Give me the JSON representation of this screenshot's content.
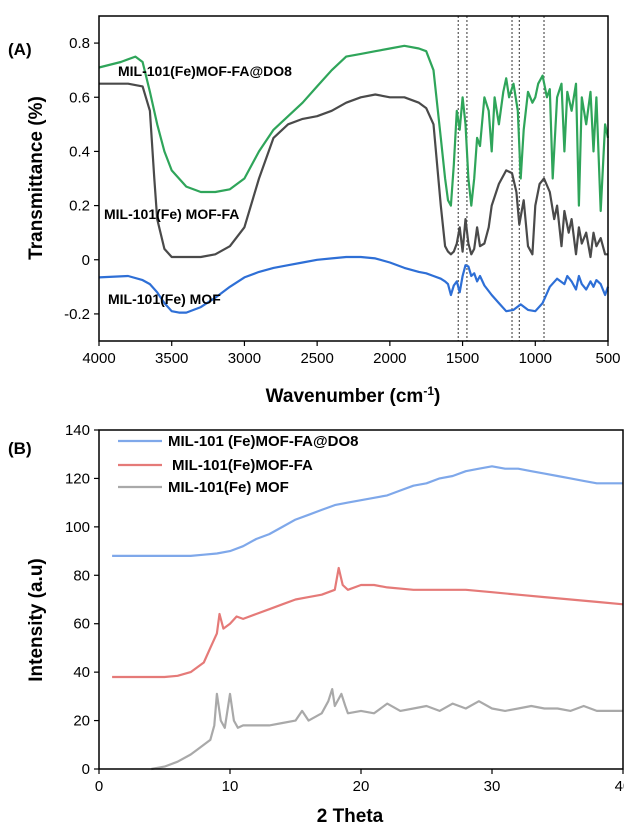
{
  "chart_data": [
    {
      "panel": "(A)",
      "type": "line",
      "xlabel": "Wavenumber (cm",
      "xlabel_sup": "-1",
      "xlabel_tail": ")",
      "ylabel": "Transmittance (%)",
      "xlim": [
        4000,
        500
      ],
      "ylim": [
        -0.3,
        0.9
      ],
      "x_reversed": true,
      "xticks": [
        "4000",
        "3500",
        "3000",
        "2500",
        "2000",
        "1500",
        "1000",
        "500"
      ],
      "yticks": [
        "-0.2",
        "0",
        "0.2",
        "0.4",
        "0.6",
        "0.8"
      ],
      "guides_x": [
        1530,
        1470,
        1160,
        1110,
        940
      ],
      "series": [
        {
          "name": "MIL-101(Fe)MOF-FA@DO8",
          "color": "#2fa55a",
          "x": [
            4000,
            3850,
            3750,
            3700,
            3650,
            3600,
            3550,
            3500,
            3400,
            3300,
            3200,
            3100,
            3000,
            2900,
            2800,
            2700,
            2600,
            2500,
            2400,
            2300,
            2200,
            2100,
            2000,
            1900,
            1800,
            1750,
            1700,
            1650,
            1620,
            1600,
            1580,
            1560,
            1540,
            1520,
            1500,
            1480,
            1460,
            1440,
            1420,
            1400,
            1380,
            1350,
            1320,
            1300,
            1280,
            1250,
            1220,
            1200,
            1180,
            1150,
            1120,
            1100,
            1080,
            1050,
            1020,
            1000,
            980,
            950,
            920,
            900,
            880,
            850,
            820,
            800,
            780,
            750,
            720,
            700,
            680,
            650,
            620,
            600,
            580,
            550,
            520,
            500
          ],
          "y": [
            0.71,
            0.73,
            0.75,
            0.73,
            0.62,
            0.5,
            0.4,
            0.33,
            0.27,
            0.25,
            0.25,
            0.26,
            0.3,
            0.4,
            0.48,
            0.53,
            0.58,
            0.64,
            0.7,
            0.75,
            0.76,
            0.77,
            0.78,
            0.79,
            0.78,
            0.77,
            0.7,
            0.45,
            0.3,
            0.22,
            0.2,
            0.35,
            0.55,
            0.48,
            0.6,
            0.5,
            0.3,
            0.2,
            0.3,
            0.45,
            0.42,
            0.6,
            0.55,
            0.4,
            0.6,
            0.5,
            0.62,
            0.67,
            0.6,
            0.65,
            0.55,
            0.3,
            0.48,
            0.62,
            0.58,
            0.6,
            0.65,
            0.68,
            0.6,
            0.63,
            0.3,
            0.6,
            0.65,
            0.4,
            0.62,
            0.55,
            0.65,
            0.2,
            0.6,
            0.5,
            0.62,
            0.4,
            0.6,
            0.18,
            0.5,
            0.45
          ]
        },
        {
          "name": "MIL-101(Fe) MOF-FA",
          "color": "#4a4a4a",
          "x": [
            4000,
            3800,
            3700,
            3650,
            3620,
            3600,
            3550,
            3500,
            3400,
            3300,
            3200,
            3100,
            3000,
            2900,
            2800,
            2700,
            2600,
            2500,
            2400,
            2300,
            2200,
            2100,
            2000,
            1900,
            1800,
            1750,
            1700,
            1650,
            1620,
            1600,
            1580,
            1560,
            1540,
            1520,
            1500,
            1480,
            1460,
            1440,
            1420,
            1400,
            1380,
            1350,
            1320,
            1300,
            1250,
            1200,
            1160,
            1130,
            1110,
            1080,
            1050,
            1020,
            1000,
            970,
            940,
            900,
            870,
            850,
            820,
            800,
            770,
            750,
            720,
            700,
            680,
            650,
            620,
            600,
            580,
            550,
            520,
            500
          ],
          "y": [
            0.65,
            0.65,
            0.64,
            0.55,
            0.3,
            0.15,
            0.04,
            0.01,
            0.01,
            0.01,
            0.02,
            0.05,
            0.12,
            0.3,
            0.45,
            0.5,
            0.52,
            0.53,
            0.55,
            0.58,
            0.6,
            0.61,
            0.6,
            0.6,
            0.58,
            0.56,
            0.5,
            0.2,
            0.05,
            0.03,
            0.02,
            0.03,
            0.06,
            0.12,
            0.03,
            0.15,
            0.06,
            0.02,
            0.04,
            0.12,
            0.05,
            0.06,
            0.12,
            0.2,
            0.28,
            0.33,
            0.32,
            0.25,
            0.13,
            0.22,
            0.05,
            0.02,
            0.2,
            0.28,
            0.3,
            0.25,
            0.15,
            0.2,
            0.05,
            0.18,
            0.1,
            0.15,
            0.02,
            0.12,
            0.06,
            0.1,
            0.01,
            0.1,
            0.05,
            0.08,
            0.02,
            0.02
          ]
        },
        {
          "name": "MIL-101(Fe) MOF",
          "color": "#2e6fd6",
          "x": [
            4000,
            3800,
            3700,
            3650,
            3600,
            3550,
            3500,
            3450,
            3400,
            3300,
            3200,
            3100,
            3000,
            2900,
            2800,
            2700,
            2600,
            2500,
            2400,
            2300,
            2200,
            2100,
            2000,
            1900,
            1800,
            1750,
            1700,
            1650,
            1620,
            1600,
            1580,
            1560,
            1540,
            1520,
            1500,
            1480,
            1460,
            1440,
            1420,
            1400,
            1380,
            1350,
            1300,
            1250,
            1200,
            1150,
            1100,
            1050,
            1000,
            950,
            900,
            850,
            800,
            780,
            750,
            720,
            700,
            680,
            650,
            620,
            600,
            580,
            550,
            520,
            500
          ],
          "y": [
            -0.065,
            -0.06,
            -0.075,
            -0.09,
            -0.12,
            -0.16,
            -0.19,
            -0.195,
            -0.195,
            -0.175,
            -0.14,
            -0.1,
            -0.065,
            -0.045,
            -0.03,
            -0.02,
            -0.01,
            0.0,
            0.005,
            0.01,
            0.01,
            0.005,
            -0.01,
            -0.03,
            -0.045,
            -0.05,
            -0.06,
            -0.07,
            -0.08,
            -0.09,
            -0.13,
            -0.095,
            -0.08,
            -0.12,
            -0.06,
            -0.02,
            -0.025,
            -0.06,
            -0.05,
            -0.08,
            -0.06,
            -0.095,
            -0.13,
            -0.16,
            -0.19,
            -0.185,
            -0.165,
            -0.185,
            -0.19,
            -0.16,
            -0.1,
            -0.07,
            -0.09,
            -0.06,
            -0.08,
            -0.11,
            -0.06,
            -0.09,
            -0.11,
            -0.08,
            -0.1,
            -0.075,
            -0.09,
            -0.13,
            -0.1
          ]
        }
      ]
    },
    {
      "panel": "(B)",
      "type": "line",
      "xlabel": "2 Theta",
      "ylabel": "Intensity (a.u)",
      "xlim": [
        0,
        40
      ],
      "ylim": [
        0,
        140
      ],
      "xticks": [
        "0",
        "10",
        "20",
        "30",
        "40"
      ],
      "yticks": [
        "0",
        "20",
        "40",
        "60",
        "80",
        "100",
        "120",
        "140"
      ],
      "series": [
        {
          "name": "MIL-101 (Fe)MOF-FA@DO8",
          "color": "#7fa8ea",
          "x": [
            1,
            3,
            5,
            7,
            8,
            9,
            10,
            11,
            12,
            13,
            14,
            15,
            16,
            17,
            18,
            19,
            20,
            21,
            22,
            23,
            24,
            25,
            26,
            27,
            28,
            29,
            30,
            31,
            32,
            33,
            34,
            35,
            36,
            37,
            38,
            39,
            40
          ],
          "y": [
            88,
            88,
            88,
            88,
            88.5,
            89,
            90,
            92,
            95,
            97,
            100,
            103,
            105,
            107,
            109,
            110,
            111,
            112,
            113,
            115,
            117,
            118,
            120,
            121,
            123,
            124,
            125,
            124,
            124,
            123,
            122,
            121,
            120,
            119,
            118,
            118,
            118
          ]
        },
        {
          "name": "MIL-101(Fe)MOF-FA",
          "color": "#e57a78",
          "x": [
            1,
            3,
            5,
            6,
            7,
            8,
            8.5,
            9,
            9.2,
            9.5,
            10,
            10.5,
            11,
            12,
            13,
            14,
            15,
            16,
            17,
            18,
            18.3,
            18.6,
            19,
            20,
            21,
            22,
            24,
            26,
            28,
            30,
            32,
            34,
            36,
            38,
            40
          ],
          "y": [
            38,
            38,
            38,
            38.5,
            40,
            44,
            50,
            56,
            64,
            58,
            60,
            63,
            62,
            64,
            66,
            68,
            70,
            71,
            72,
            74,
            83,
            76,
            74,
            76,
            76,
            75,
            74,
            74,
            74,
            73,
            72,
            71,
            70,
            69,
            68
          ]
        },
        {
          "name": "MIL-101(Fe) MOF",
          "color": "#a9a9a9",
          "x": [
            4,
            5,
            6,
            7,
            7.5,
            8,
            8.5,
            8.8,
            9,
            9.3,
            9.6,
            10,
            10.3,
            10.6,
            11,
            12,
            13,
            14,
            15,
            15.5,
            16,
            17,
            17.5,
            17.8,
            18,
            18.5,
            18.8,
            19,
            20,
            21,
            22,
            23,
            24,
            25,
            26,
            27,
            28,
            29,
            30,
            31,
            32,
            33,
            34,
            35,
            36,
            37,
            38,
            39,
            40
          ],
          "y": [
            0,
            1,
            3,
            6,
            8,
            10,
            12,
            18,
            31,
            20,
            17,
            31,
            20,
            17,
            18,
            18,
            18,
            19,
            20,
            24,
            20,
            23,
            28,
            33,
            26,
            31,
            26,
            23,
            24,
            23,
            27,
            24,
            25,
            26,
            24,
            27,
            25,
            28,
            25,
            24,
            25,
            26,
            25,
            25,
            24,
            26,
            24,
            24,
            24
          ]
        }
      ]
    }
  ]
}
